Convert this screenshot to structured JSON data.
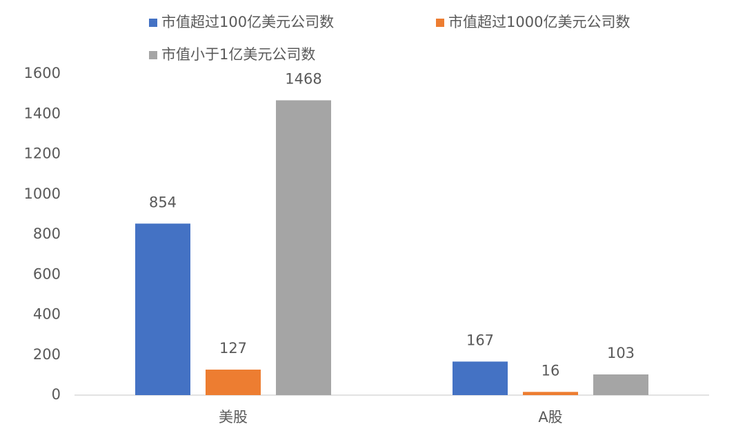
{
  "chart_data": {
    "type": "bar",
    "categories": [
      "美股",
      "A股"
    ],
    "series": [
      {
        "name": "市值超过100亿美元公司数",
        "color": "#4472c4",
        "values": [
          854,
          167
        ]
      },
      {
        "name": "市值超过1000亿美元公司数",
        "color": "#ed7d31",
        "values": [
          127,
          16
        ]
      },
      {
        "name": "市值小于1亿美元公司数",
        "color": "#a5a5a5",
        "values": [
          1468,
          103
        ]
      }
    ],
    "ylim": [
      0,
      1600
    ],
    "yticks": [
      0,
      200,
      400,
      600,
      800,
      1000,
      1200,
      1400,
      1600
    ],
    "grid": false,
    "legend": "top"
  }
}
